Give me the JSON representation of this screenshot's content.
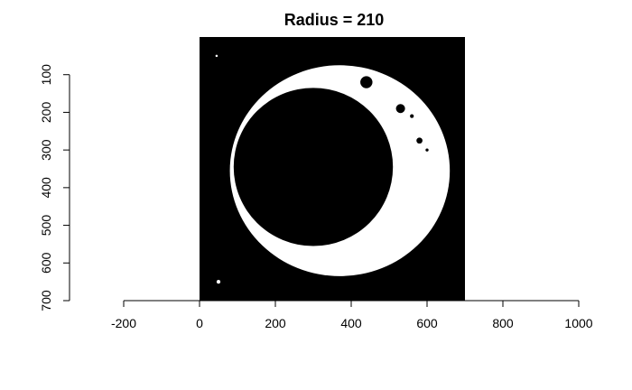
{
  "chart_data": {
    "type": "image",
    "title": "Radius = 210",
    "xlabel": "",
    "ylabel": "",
    "xlim": [
      -250,
      1050
    ],
    "ylim": [
      700,
      0
    ],
    "x_ticks": [
      -200,
      0,
      200,
      400,
      600,
      800,
      1000
    ],
    "y_ticks": [
      100,
      200,
      300,
      400,
      500,
      600,
      700
    ],
    "image_extent": {
      "x": [
        0,
        700
      ],
      "y": [
        0,
        700
      ]
    },
    "background_color": "#000000",
    "foreground_color": "#ffffff",
    "outer_ring": {
      "cx": 370,
      "cy": 355,
      "rx": 290,
      "ry": 280
    },
    "inner_disk": {
      "cx": 300,
      "cy": 345,
      "r": 210
    },
    "blobs": [
      {
        "cx": 440,
        "cy": 120,
        "r": 16
      },
      {
        "cx": 530,
        "cy": 190,
        "r": 12
      },
      {
        "cx": 580,
        "cy": 275,
        "r": 8
      },
      {
        "cx": 560,
        "cy": 210,
        "r": 5
      },
      {
        "cx": 50,
        "cy": 650,
        "r": 5
      },
      {
        "cx": 45,
        "cy": 50,
        "r": 3
      },
      {
        "cx": 600,
        "cy": 300,
        "r": 4
      }
    ],
    "grid": false,
    "legend": "none"
  }
}
